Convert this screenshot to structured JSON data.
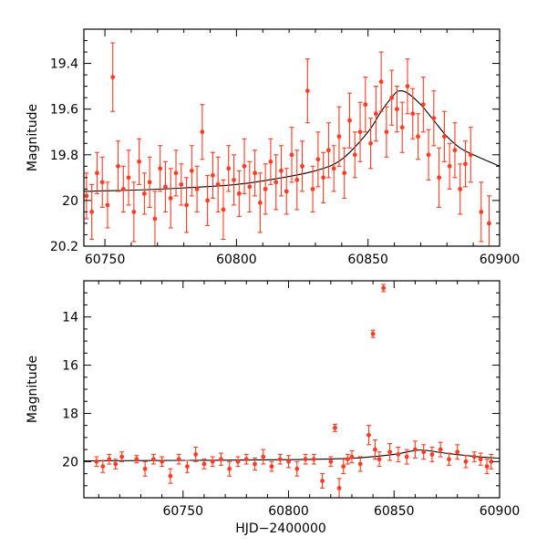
{
  "chart_data": [
    {
      "type": "scatter",
      "panel": "top",
      "xlabel": "",
      "ylabel": "Magnitude",
      "xlim": [
        60742,
        60900
      ],
      "ylim": [
        20.2,
        19.25
      ],
      "y_inverted": true,
      "xticks": [
        60750,
        60800,
        60850,
        60900
      ],
      "yticks": [
        19.4,
        19.6,
        19.8,
        20,
        20.2
      ],
      "colors": {
        "data": "#ff3a1f",
        "model": "#000000"
      },
      "model_curve": {
        "name": "",
        "peak_x": 60862,
        "peak_y": 19.52,
        "base_y": 19.96,
        "x": [
          60742,
          60760,
          60780,
          60800,
          60815,
          60830,
          60840,
          60850,
          60855,
          60860,
          60862,
          60865,
          60870,
          60875,
          60880,
          60885,
          60890,
          60900
        ],
        "y": [
          19.96,
          19.955,
          19.945,
          19.93,
          19.905,
          19.87,
          19.82,
          19.7,
          19.61,
          19.535,
          19.52,
          19.53,
          19.58,
          19.65,
          19.72,
          19.77,
          19.8,
          19.85
        ]
      },
      "series": [
        {
          "name": "",
          "x": [
            60743,
            60745,
            60747,
            60749,
            60751,
            60753,
            60755,
            60757,
            60759,
            60761,
            60763,
            60765,
            60767,
            60769,
            60771,
            60773,
            60775,
            60777,
            60779,
            60781,
            60783,
            60785,
            60787,
            60789,
            60791,
            60793,
            60795,
            60797,
            60799,
            60801,
            60803,
            60805,
            60807,
            60809,
            60811,
            60813,
            60815,
            60817,
            60819,
            60821,
            60823,
            60825,
            60827,
            60829,
            60831,
            60833,
            60835,
            60837,
            60839,
            60841,
            60843,
            60845,
            60847,
            60849,
            60851,
            60853,
            60855,
            60857,
            60859,
            60861,
            60863,
            60865,
            60867,
            60869,
            60871,
            60873,
            60875,
            60877,
            60879,
            60881,
            60883,
            60885,
            60887,
            60889,
            60893,
            60896
          ],
          "y": [
            19.98,
            20.05,
            19.88,
            19.92,
            20.02,
            19.46,
            19.85,
            19.95,
            19.9,
            20.05,
            19.83,
            19.97,
            19.92,
            20.08,
            19.86,
            19.94,
            19.99,
            19.88,
            19.93,
            20.02,
            19.87,
            19.95,
            19.7,
            20.0,
            19.89,
            19.93,
            20.04,
            19.86,
            19.91,
            19.97,
            19.85,
            19.94,
            19.88,
            20.01,
            19.95,
            19.83,
            19.92,
            19.87,
            19.96,
            19.8,
            19.91,
            19.85,
            19.52,
            19.95,
            19.82,
            19.9,
            19.78,
            19.86,
            19.72,
            19.88,
            19.65,
            19.8,
            19.7,
            19.58,
            19.75,
            19.62,
            19.48,
            19.7,
            19.55,
            19.6,
            19.68,
            19.5,
            19.62,
            19.72,
            19.58,
            19.8,
            19.64,
            19.9,
            19.72,
            19.85,
            19.78,
            19.95,
            19.84,
            19.8,
            20.05,
            20.1
          ],
          "yerr": [
            0.1,
            0.12,
            0.09,
            0.11,
            0.1,
            0.15,
            0.11,
            0.1,
            0.12,
            0.13,
            0.1,
            0.09,
            0.11,
            0.12,
            0.1,
            0.11,
            0.13,
            0.1,
            0.09,
            0.12,
            0.11,
            0.1,
            0.12,
            0.11,
            0.1,
            0.12,
            0.13,
            0.1,
            0.11,
            0.1,
            0.12,
            0.11,
            0.1,
            0.13,
            0.11,
            0.1,
            0.12,
            0.11,
            0.1,
            0.12,
            0.13,
            0.11,
            0.14,
            0.1,
            0.12,
            0.11,
            0.12,
            0.1,
            0.13,
            0.11,
            0.12,
            0.1,
            0.13,
            0.12,
            0.11,
            0.12,
            0.13,
            0.11,
            0.12,
            0.1,
            0.11,
            0.12,
            0.11,
            0.1,
            0.12,
            0.11,
            0.12,
            0.13,
            0.11,
            0.1,
            0.12,
            0.11,
            0.1,
            0.12,
            0.13,
            0.12
          ]
        }
      ]
    },
    {
      "type": "scatter",
      "panel": "bottom",
      "xlabel": "HJD−2400000",
      "ylabel": "Magnitude",
      "xlim": [
        60703,
        60900
      ],
      "ylim": [
        21.5,
        12.5
      ],
      "y_inverted": true,
      "xticks": [
        60750,
        60800,
        60850,
        60900
      ],
      "yticks": [
        14,
        16,
        18,
        20
      ],
      "colors": {
        "data": "#ff3a1f",
        "model": "#000000"
      },
      "model_curve": {
        "name": "",
        "x": [
          60703,
          60750,
          60800,
          60830,
          60850,
          60862,
          60875,
          60890,
          60900
        ],
        "y": [
          19.97,
          19.95,
          19.92,
          19.86,
          19.7,
          19.52,
          19.66,
          19.8,
          19.86
        ]
      },
      "series": [
        {
          "name": "",
          "x": [
            60709,
            60712,
            60715,
            60718,
            60721,
            60728,
            60732,
            60736,
            60740,
            60744,
            60748,
            60752,
            60756,
            60760,
            60764,
            60768,
            60772,
            60776,
            60780,
            60784,
            60788,
            60792,
            60796,
            60800,
            60804,
            60808,
            60812,
            60816,
            60820,
            60822,
            60824,
            60826,
            60828,
            60830,
            60834,
            60838,
            60840,
            60841,
            60843,
            60845,
            60848,
            60852,
            60856,
            60860,
            60864,
            60868,
            60872,
            60876,
            60880,
            60884,
            60888,
            60891,
            60894,
            60896
          ],
          "y": [
            20.0,
            20.2,
            19.9,
            20.1,
            19.8,
            19.9,
            20.3,
            19.9,
            20.0,
            20.6,
            19.9,
            20.2,
            19.7,
            20.1,
            20.0,
            19.9,
            20.3,
            20.0,
            19.9,
            20.1,
            19.8,
            20.2,
            19.9,
            20.0,
            20.3,
            19.9,
            19.9,
            20.8,
            20.0,
            18.6,
            21.1,
            20.2,
            19.9,
            19.8,
            20.1,
            18.9,
            14.7,
            19.5,
            19.9,
            12.8,
            19.6,
            19.7,
            19.8,
            19.5,
            19.6,
            19.7,
            19.5,
            19.9,
            19.6,
            20.0,
            19.8,
            19.9,
            20.2,
            20.0
          ],
          "yerr": [
            0.2,
            0.25,
            0.2,
            0.2,
            0.2,
            0.15,
            0.3,
            0.2,
            0.2,
            0.3,
            0.2,
            0.25,
            0.3,
            0.2,
            0.2,
            0.25,
            0.3,
            0.2,
            0.2,
            0.25,
            0.3,
            0.2,
            0.2,
            0.25,
            0.3,
            0.2,
            0.2,
            0.3,
            0.2,
            0.15,
            0.4,
            0.3,
            0.2,
            0.25,
            0.3,
            0.4,
            0.15,
            0.4,
            0.3,
            0.15,
            0.35,
            0.3,
            0.3,
            0.35,
            0.3,
            0.3,
            0.3,
            0.25,
            0.3,
            0.25,
            0.2,
            0.25,
            0.3,
            0.3
          ]
        }
      ]
    }
  ]
}
